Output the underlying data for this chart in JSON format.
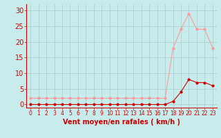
{
  "title": "",
  "xlabel": "Vent moyen/en rafales ( km/h )",
  "x_labels": [
    "0",
    "1",
    "2",
    "3",
    "4",
    "5",
    "6",
    "7",
    "8",
    "9",
    "10",
    "11",
    "12",
    "13",
    "14",
    "15",
    "16",
    "17",
    "18",
    "19",
    "20",
    "21",
    "22",
    "23"
  ],
  "ylim": [
    -1,
    32
  ],
  "xlim": [
    -0.5,
    23.5
  ],
  "yticks": [
    0,
    5,
    10,
    15,
    20,
    25,
    30
  ],
  "background_color": "#c8ecec",
  "grid_color": "#aacccc",
  "line_color_mean": "#cc0000",
  "line_color_gust": "#ff9999",
  "mean_wind": [
    0,
    0,
    0,
    0,
    0,
    0,
    0,
    0,
    0,
    0,
    0,
    0,
    0,
    0,
    0,
    0,
    0,
    0,
    1,
    4,
    8,
    7,
    7,
    6
  ],
  "gust_wind": [
    2,
    2,
    2,
    2,
    2,
    2,
    2,
    2,
    2,
    2,
    2,
    2,
    2,
    2,
    2,
    2,
    2,
    2,
    18,
    24,
    29,
    24,
    24,
    18
  ],
  "marker_size": 2,
  "xlabel_fontsize": 7,
  "ytick_fontsize": 7,
  "xtick_fontsize": 5.5
}
